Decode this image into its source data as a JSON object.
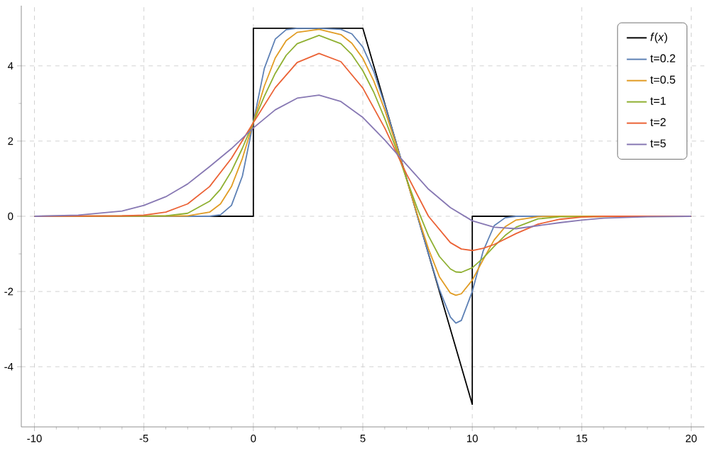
{
  "chart_data": {
    "type": "line",
    "xlim": [
      -10.6,
      20.6
    ],
    "ylim": [
      -5.6,
      5.6
    ],
    "xticks": [
      -10,
      -5,
      0,
      5,
      10,
      15,
      20
    ],
    "yticks": [
      -4,
      -2,
      0,
      2,
      4
    ],
    "grid": true,
    "legend": "top right",
    "series": [
      {
        "name": "*f*(*x*)",
        "color": "#000000",
        "x": [
          -10,
          0,
          0,
          5,
          10,
          10,
          20
        ],
        "values": [
          0,
          0,
          5,
          5,
          -5,
          0,
          0
        ]
      },
      {
        "name": "t=0.2",
        "color": "#5e81b5",
        "x": [
          -10,
          -3,
          -2,
          -1.5,
          -1,
          -0.5,
          0,
          0.5,
          1,
          1.5,
          2,
          3,
          4,
          4.5,
          5,
          5.5,
          6,
          6.5,
          7,
          7.5,
          8,
          8.5,
          9,
          9.25,
          9.5,
          10,
          10.5,
          11,
          11.5,
          12,
          14,
          20
        ],
        "values": [
          0,
          0,
          0,
          0.04,
          0.29,
          1.07,
          2.5,
          3.93,
          4.71,
          4.96,
          5,
          5,
          4.97,
          4.85,
          4.5,
          3.85,
          2.97,
          2.0,
          1.0,
          0.0,
          -1.0,
          -1.95,
          -2.68,
          -2.84,
          -2.77,
          -2.0,
          -0.92,
          -0.25,
          -0.04,
          0,
          0,
          0
        ]
      },
      {
        "name": "t=0.5",
        "color": "#e19c24",
        "x": [
          -10,
          -3,
          -2,
          -1.5,
          -1,
          -0.5,
          0,
          0.5,
          1,
          1.5,
          2,
          3,
          4,
          4.5,
          5,
          5.5,
          6,
          6.5,
          7,
          7.5,
          8,
          8.5,
          9,
          9.25,
          9.5,
          10,
          10.5,
          11,
          11.5,
          12,
          13,
          14,
          20
        ],
        "values": [
          0,
          0.01,
          0.11,
          0.33,
          0.79,
          1.54,
          2.5,
          3.46,
          4.21,
          4.67,
          4.89,
          4.97,
          4.83,
          4.6,
          4.2,
          3.6,
          2.83,
          1.94,
          0.98,
          0.03,
          -0.87,
          -1.61,
          -2.04,
          -2.1,
          -2.06,
          -1.7,
          -1.15,
          -0.63,
          -0.28,
          -0.1,
          -0.01,
          0,
          0
        ]
      },
      {
        "name": "t=1",
        "color": "#8fb032",
        "x": [
          -10,
          -4,
          -3,
          -2,
          -1.5,
          -1,
          -0.5,
          0,
          0.5,
          1,
          1.5,
          2,
          3,
          4,
          4.5,
          5,
          5.5,
          6,
          6.5,
          7,
          7.5,
          8,
          8.5,
          9,
          9.25,
          9.5,
          10,
          10.5,
          11,
          11.5,
          12,
          13,
          14,
          20
        ],
        "values": [
          0,
          0.01,
          0.08,
          0.4,
          0.72,
          1.2,
          1.81,
          2.5,
          3.19,
          3.8,
          4.28,
          4.59,
          4.81,
          4.59,
          4.3,
          3.87,
          3.3,
          2.6,
          1.83,
          0.99,
          0.19,
          -0.52,
          -1.07,
          -1.4,
          -1.48,
          -1.49,
          -1.37,
          -1.11,
          -0.8,
          -0.51,
          -0.29,
          -0.07,
          -0.01,
          0
        ]
      },
      {
        "name": "t=2",
        "color": "#eb6235",
        "x": [
          -10,
          -6,
          -5,
          -4,
          -3,
          -2,
          -1,
          0,
          1,
          2,
          3,
          4,
          5,
          6,
          7,
          8,
          9,
          9.5,
          10,
          10.5,
          11,
          12,
          13,
          14,
          15,
          16,
          20
        ],
        "values": [
          0,
          0.01,
          0.03,
          0.11,
          0.33,
          0.79,
          1.54,
          2.49,
          3.42,
          4.09,
          4.33,
          4.11,
          3.41,
          2.35,
          1.12,
          0.0,
          -0.7,
          -0.87,
          -0.91,
          -0.85,
          -0.75,
          -0.46,
          -0.21,
          -0.08,
          -0.02,
          0,
          0
        ]
      },
      {
        "name": "t=5",
        "color": "#8778b3",
        "x": [
          -10,
          -8,
          -6,
          -5,
          -4,
          -3,
          -2,
          -1,
          0,
          1,
          2,
          3,
          4,
          5,
          6,
          7,
          8,
          9,
          10,
          11,
          12,
          13,
          14,
          15,
          16,
          18,
          20
        ],
        "values": [
          0,
          0.03,
          0.14,
          0.29,
          0.52,
          0.86,
          1.32,
          1.8,
          2.35,
          2.83,
          3.14,
          3.22,
          3.05,
          2.63,
          2.03,
          1.37,
          0.72,
          0.23,
          -0.12,
          -0.29,
          -0.33,
          -0.25,
          -0.17,
          -0.1,
          -0.05,
          -0.01,
          0
        ]
      }
    ]
  }
}
